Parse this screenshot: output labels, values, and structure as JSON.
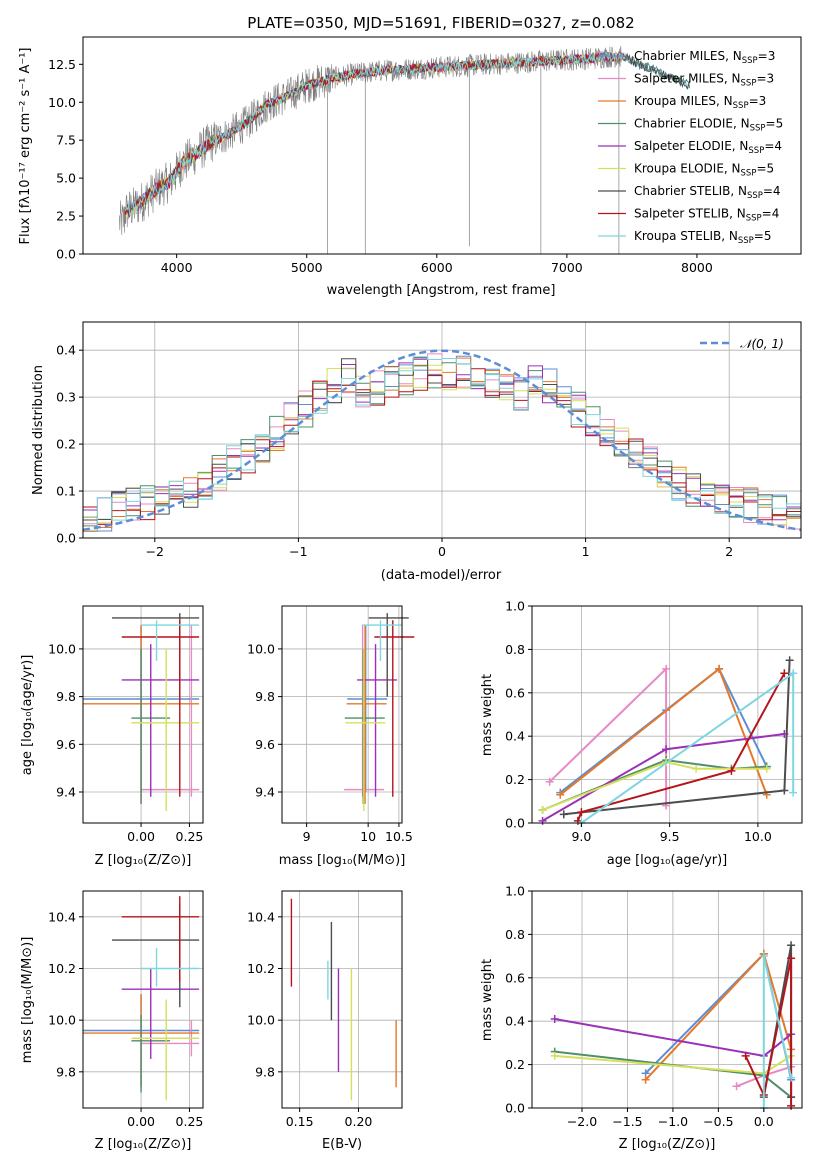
{
  "colors": {
    "Chabrier MILES": "#5b8ed6",
    "Salpeter MILES": "#e78ac3",
    "Kroupa MILES": "#e6782a",
    "Chabrier ELODIE": "#4f8f6a",
    "Salpeter ELODIE": "#9b30b8",
    "Kroupa ELODIE": "#d6e05a",
    "Chabrier STELIB": "#4d4d4d",
    "Salpeter STELIB": "#b5141b",
    "Kroupa STELIB": "#7fd6e0",
    "data": "#808080",
    "normal": "#5b8ed6"
  },
  "chart_data": [
    {
      "type": "line",
      "title": "PLATE=0350, MJD=51691, FIBERID=0327, z=0.082",
      "xlabel": "wavelength [Angstrom, rest frame]",
      "ylabel": "Flux [fλ10⁻¹⁷ erg cm⁻² s⁻¹ A⁻¹]",
      "xlim": [
        3280,
        8800
      ],
      "ylim": [
        0,
        14.3
      ],
      "xticks": [
        "4000",
        "5000",
        "6000",
        "7000",
        "8000"
      ],
      "yticks": [
        "0.0",
        "2.5",
        "5.0",
        "7.5",
        "10.0",
        "12.5"
      ],
      "legend_placement": "right",
      "legend": [
        {
          "name": "Chabrier MILES",
          "sub": "SSP",
          "val": "3"
        },
        {
          "name": "Salpeter MILES",
          "sub": "SSP",
          "val": "3"
        },
        {
          "name": "Kroupa MILES",
          "sub": "SSP",
          "val": "3"
        },
        {
          "name": "Chabrier ELODIE",
          "sub": "SSP",
          "val": "5"
        },
        {
          "name": "Salpeter ELODIE",
          "sub": "SSP",
          "val": "4"
        },
        {
          "name": "Kroupa ELODIE",
          "sub": "SSP",
          "val": "5"
        },
        {
          "name": "Chabrier STELIB",
          "sub": "SSP",
          "val": "4"
        },
        {
          "name": "Salpeter STELIB",
          "sub": "SSP",
          "val": "4"
        },
        {
          "name": "Kroupa STELIB",
          "sub": "SSP",
          "val": "5"
        }
      ],
      "continuum_points": [
        [
          3560,
          2.6
        ],
        [
          3700,
          3.2
        ],
        [
          3850,
          4.3
        ],
        [
          3950,
          4.8
        ],
        [
          4050,
          6.0
        ],
        [
          4150,
          6.6
        ],
        [
          4250,
          7.3
        ],
        [
          4400,
          7.9
        ],
        [
          4550,
          8.7
        ],
        [
          4700,
          9.9
        ],
        [
          4850,
          10.4
        ],
        [
          5000,
          11.1
        ],
        [
          5200,
          11.6
        ],
        [
          5400,
          11.9
        ],
        [
          5600,
          12.1
        ],
        [
          5800,
          12.2
        ],
        [
          6000,
          12.3
        ],
        [
          6200,
          12.4
        ],
        [
          6400,
          12.5
        ],
        [
          6600,
          12.6
        ],
        [
          6800,
          12.7
        ],
        [
          7000,
          12.8
        ],
        [
          7200,
          12.9
        ],
        [
          7300,
          13.0
        ],
        [
          7450,
          13.0
        ],
        [
          7550,
          12.5
        ],
        [
          7650,
          12.2
        ],
        [
          7800,
          11.6
        ],
        [
          7950,
          11.1
        ]
      ],
      "data_range": [
        3560,
        7420
      ],
      "absorption_lines": [
        [
          5160,
          0
        ],
        [
          5450,
          0
        ],
        [
          6250,
          0.5
        ],
        [
          6800,
          0
        ],
        [
          7400,
          0
        ]
      ]
    },
    {
      "type": "bar",
      "xlabel": "(data-model)/error",
      "ylabel": "Normed distribution",
      "xlim": [
        -2.5,
        2.5
      ],
      "ylim": [
        0,
        0.46
      ],
      "xticks": [
        "−2",
        "−1",
        "0",
        "1",
        "2"
      ],
      "yticks": [
        "0.0",
        "0.1",
        "0.2",
        "0.3",
        "0.4"
      ],
      "grid": true,
      "legend": "𝒩(0, 1)",
      "legend_placement": "top-right",
      "bin_width": 0.1
    },
    {
      "type": "scatter",
      "xlabel": "Z [log₁₀(Z/Z⊙)]",
      "ylabel": "age  [log₁₀(age/yr)]",
      "xlim": [
        -0.3,
        0.32
      ],
      "ylim": [
        9.27,
        10.18
      ],
      "xticks": [
        "0.00",
        "0.25"
      ],
      "yticks": [
        "9.4",
        "9.6",
        "9.8",
        "10.0"
      ],
      "grid": true
    },
    {
      "type": "scatter",
      "xlabel": "mass [log₁₀(M/M⊙)]",
      "ylabel": "",
      "xlim": [
        8.6,
        10.55
      ],
      "ylim": [
        9.27,
        10.18
      ],
      "xticks": [
        "9",
        "10",
        "10.5"
      ],
      "yticks": [
        "9.4",
        "9.6",
        "9.8",
        "10.0"
      ],
      "grid": true
    },
    {
      "type": "line",
      "xlabel": "age  [log₁₀(age/yr)]",
      "ylabel": "mass weight",
      "xlim": [
        8.72,
        10.25
      ],
      "ylim": [
        0,
        1.0
      ],
      "xticks": [
        "9.0",
        "9.5",
        "10.0"
      ],
      "yticks": [
        "0.0",
        "0.2",
        "0.4",
        "0.6",
        "0.8",
        "1.0"
      ],
      "grid": true
    },
    {
      "type": "scatter",
      "xlabel": "Z [log₁₀(Z/Z⊙)]",
      "ylabel": "mass [log₁₀(M/M⊙)]",
      "xlim": [
        -0.3,
        0.32
      ],
      "ylim": [
        9.66,
        10.5
      ],
      "xticks": [
        "0.00",
        "0.25"
      ],
      "yticks": [
        "9.8",
        "10.0",
        "10.2",
        "10.4"
      ],
      "grid": true
    },
    {
      "type": "scatter",
      "xlabel": "E(B-V)",
      "ylabel": "",
      "xlim": [
        0.135,
        0.237
      ],
      "ylim": [
        9.66,
        10.5
      ],
      "xticks": [
        "0.15",
        "0.20"
      ],
      "yticks": [
        "9.8",
        "10.0",
        "10.2",
        "10.4"
      ],
      "grid": true
    },
    {
      "type": "line",
      "xlabel": "Z [log₁₀(Z/Z⊙)]",
      "ylabel": "mass weight",
      "xlim": [
        -2.55,
        0.42
      ],
      "ylim": [
        0,
        1.0
      ],
      "xticks": [
        "−2.0",
        "−1.5",
        "−1.0",
        "−0.5",
        "0.0"
      ],
      "yticks": [
        "0.0",
        "0.2",
        "0.4",
        "0.6",
        "0.8",
        "1.0"
      ],
      "grid": true
    }
  ],
  "models": [
    {
      "name": "Chabrier MILES",
      "age": [
        9.4,
        10.1
      ],
      "agev": 9.79,
      "Z": [
        -0.3,
        0.3
      ],
      "Zv": 0.0,
      "mass": [
        9.74,
        10.1
      ],
      "massv": 9.96,
      "ebv": [
        9.66,
        9.66
      ],
      "ebvx": 0.237,
      "mw_age": [
        [
          8.88,
          0.14
        ],
        [
          9.48,
          0.52
        ],
        [
          9.78,
          0.71
        ],
        [
          10.05,
          0.26
        ]
      ],
      "mw_Z": [
        [
          -1.3,
          0.16
        ],
        [
          0.0,
          0.71
        ],
        [
          0.3,
          0.13
        ]
      ]
    },
    {
      "name": "Salpeter MILES",
      "age": [
        9.38,
        10.1
      ],
      "agev": 9.41,
      "Z": [
        0.0,
        0.3
      ],
      "Zv": 0.26,
      "mass": [
        9.86,
        10.0
      ],
      "massv": 9.91,
      "ebv": [
        9.66,
        9.66
      ],
      "ebvx": 0.237,
      "mw_age": [
        [
          8.82,
          0.19
        ],
        [
          9.48,
          0.71
        ],
        [
          9.48,
          0.08
        ]
      ],
      "mw_Z": [
        [
          -0.3,
          0.1
        ],
        [
          0.0,
          0.15
        ],
        [
          0.3,
          0.19
        ]
      ]
    },
    {
      "name": "Kroupa MILES",
      "age": [
        9.35,
        10.1
      ],
      "agev": 9.77,
      "Z": [
        -0.3,
        0.3
      ],
      "Zv": 0.0,
      "mass": [
        9.75,
        10.1
      ],
      "massv": 9.95,
      "ebv": [
        9.74,
        10.0
      ],
      "ebvx": 0.232,
      "mw_age": [
        [
          8.88,
          0.13
        ],
        [
          9.78,
          0.71
        ],
        [
          10.05,
          0.13
        ]
      ],
      "mw_Z": [
        [
          -1.3,
          0.13
        ],
        [
          0.0,
          0.71
        ],
        [
          0.3,
          0.27
        ]
      ]
    },
    {
      "name": "Chabrier ELODIE",
      "age": [
        9.35,
        10.0
      ],
      "agev": 9.71,
      "Z": [
        -0.05,
        0.15
      ],
      "Zv": 0.0,
      "mass": [
        9.72,
        10.02
      ],
      "massv": 9.92,
      "ebv": [
        9.66,
        9.66
      ],
      "ebvx": 0.237,
      "mw_age": [
        [
          8.78,
          0.06
        ],
        [
          9.48,
          0.29
        ],
        [
          9.85,
          0.25
        ],
        [
          10.05,
          0.26
        ]
      ],
      "mw_Z": [
        [
          -2.3,
          0.26
        ],
        [
          0.0,
          0.15
        ],
        [
          0.3,
          0.05
        ]
      ]
    },
    {
      "name": "Salpeter ELODIE",
      "age": [
        9.38,
        10.02
      ],
      "agev": 9.87,
      "Z": [
        -0.1,
        0.3
      ],
      "Zv": 0.05,
      "mass": [
        9.85,
        10.2
      ],
      "massv": 10.12,
      "ebv": [
        9.8,
        10.2
      ],
      "ebvx": 0.183,
      "mw_age": [
        [
          8.78,
          0.01
        ],
        [
          9.48,
          0.34
        ],
        [
          10.15,
          0.41
        ]
      ],
      "mw_Z": [
        [
          -2.3,
          0.41
        ],
        [
          0.0,
          0.24
        ],
        [
          0.3,
          0.34
        ]
      ]
    },
    {
      "name": "Kroupa ELODIE",
      "age": [
        9.32,
        10.0
      ],
      "agev": 9.69,
      "Z": [
        -0.05,
        0.3
      ],
      "Zv": 0.13,
      "mass": [
        9.69,
        10.08
      ],
      "massv": 9.93,
      "ebv": [
        9.69,
        10.2
      ],
      "ebvx": 0.194,
      "mw_age": [
        [
          8.78,
          0.06
        ],
        [
          9.48,
          0.28
        ],
        [
          9.65,
          0.25
        ],
        [
          10.05,
          0.25
        ]
      ],
      "mw_Z": [
        [
          -2.3,
          0.24
        ],
        [
          0.0,
          0.16
        ],
        [
          0.3,
          0.24
        ]
      ]
    },
    {
      "name": "Chabrier STELIB",
      "age": [
        9.8,
        10.15
      ],
      "agev": 10.13,
      "Z": [
        -0.15,
        0.3
      ],
      "Zv": 0.2,
      "mass": [
        10.05,
        10.45
      ],
      "massv": 10.31,
      "ebv": [
        10.0,
        10.38
      ],
      "ebvx": 0.177,
      "mw_age": [
        [
          8.9,
          0.04
        ],
        [
          10.15,
          0.15
        ],
        [
          10.18,
          0.75
        ]
      ],
      "mw_Z": [
        [
          0.0,
          0.05
        ],
        [
          0.3,
          0.75
        ],
        [
          0.3,
          0.05
        ]
      ]
    },
    {
      "name": "Salpeter STELIB",
      "age": [
        9.38,
        10.12
      ],
      "agev": 10.05,
      "Z": [
        -0.1,
        0.3
      ],
      "Zv": 0.2,
      "mass": [
        10.15,
        10.48
      ],
      "massv": 10.4,
      "ebv": [
        10.13,
        10.47
      ],
      "ebvx": 0.143,
      "mw_age": [
        [
          8.98,
          0.01
        ],
        [
          9.0,
          0.05
        ],
        [
          9.85,
          0.24
        ],
        [
          10.15,
          0.69
        ]
      ],
      "mw_Z": [
        [
          -0.2,
          0.24
        ],
        [
          0.0,
          0.06
        ],
        [
          0.3,
          0.69
        ],
        [
          0.3,
          0.01
        ]
      ]
    },
    {
      "name": "Kroupa STELIB",
      "age": [
        9.95,
        10.12
      ],
      "agev": 10.1,
      "Z": [
        0.0,
        0.3
      ],
      "Zv": 0.08,
      "mass": [
        10.13,
        10.28
      ],
      "massv": 10.2,
      "ebv": [
        10.08,
        10.23
      ],
      "ebvx": 0.174,
      "mw_age": [
        [
          9.0,
          0.0
        ],
        [
          10.2,
          0.69
        ],
        [
          10.2,
          0.14
        ]
      ],
      "mw_Z": [
        [
          0.0,
          0.0
        ],
        [
          0.0,
          0.7
        ],
        [
          0.3,
          0.14
        ]
      ]
    }
  ]
}
